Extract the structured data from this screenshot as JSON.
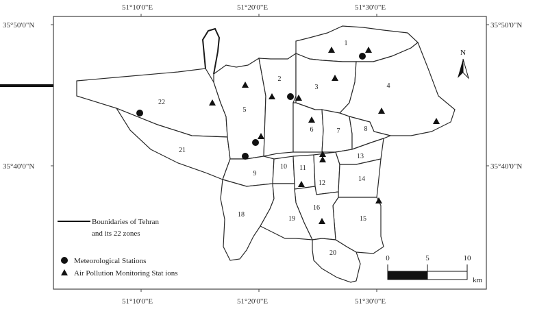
{
  "coordinates": {
    "top": [
      "51°10'0\"E",
      "51°20'0\"E",
      "51°30'0\"E"
    ],
    "bottom": [
      "51°10'0\"E",
      "51°20'0\"E",
      "51°30'0\"E"
    ],
    "left": [
      "35°50'0\"N",
      "35°40'0\"N"
    ],
    "right": [
      "35°50'0\"N",
      "35°40'0\"N"
    ]
  },
  "zones": [
    "1",
    "2",
    "3",
    "4",
    "5",
    "6",
    "7",
    "8",
    "9",
    "10",
    "11",
    "12",
    "13",
    "14",
    "15",
    "16",
    "18",
    "19",
    "20",
    "21",
    "22"
  ],
  "north_arrow": {
    "label": "N"
  },
  "scale_bar": {
    "ticks": [
      "0",
      "5",
      "10"
    ],
    "unit": "km"
  },
  "legend": {
    "boundaries": "Bounidaries of Tehran and its 22 zones",
    "meteorological": "Meteorological Stations",
    "air_pollution": "Air Pollution Monitoring Stat ions"
  },
  "symbols": {
    "meteorological": "filled-circle",
    "air_pollution": "filled-triangle"
  }
}
